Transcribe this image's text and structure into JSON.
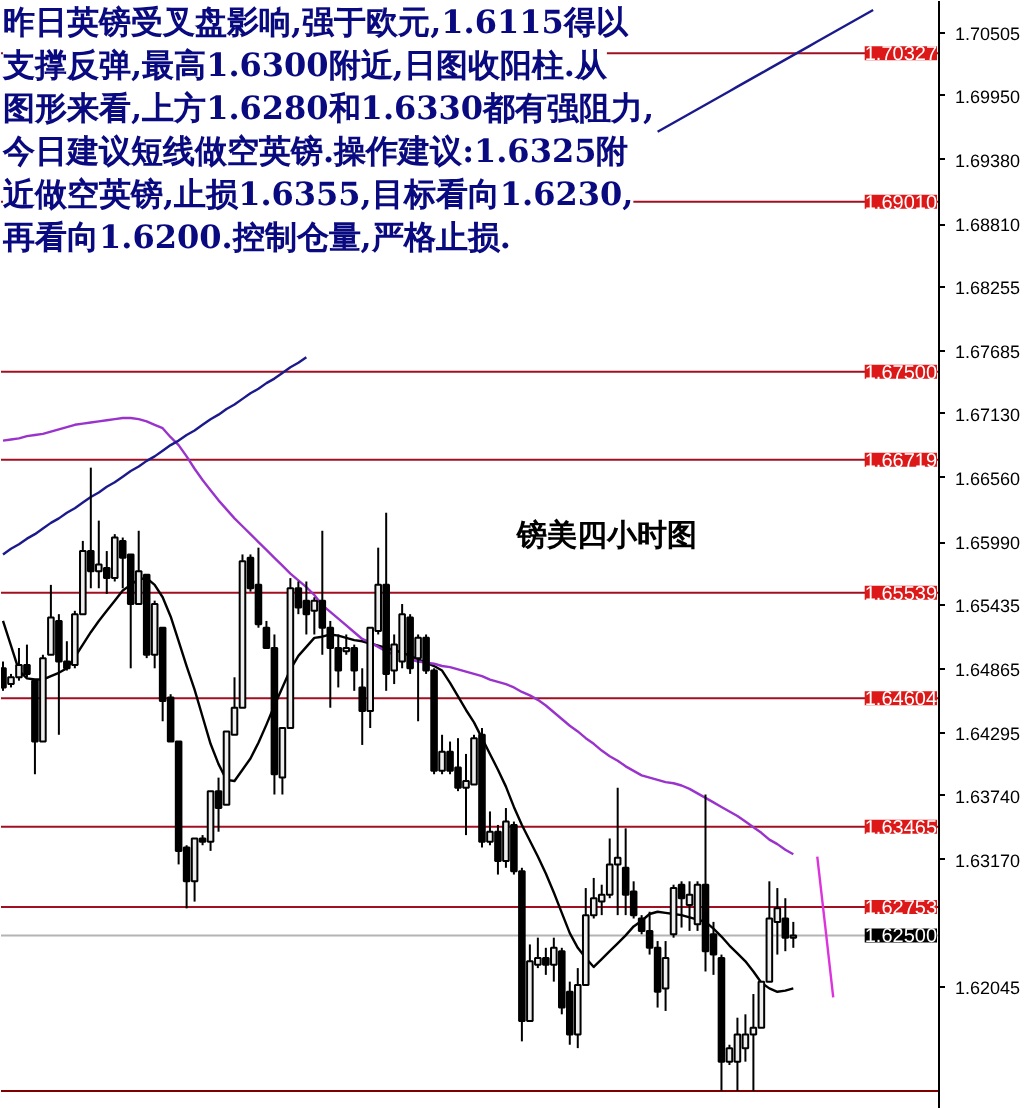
{
  "chart_data": {
    "type": "candlestick",
    "title": "镑美四小时图",
    "annotations": [
      "昨日英镑受叉盘影响,强于欧元,1.6115得以",
      "支撑反弹,最高1.6300附近,日图收阳柱.从",
      "图形来看,上方1.6280和1.6330都有强阻力,",
      "今日建议短线做空英镑.操作建议:1.6325附",
      "近做空英镑,止损1.6355,目标看向1.6230,",
      "再看向1.6200.控制仓量,严格止损."
    ],
    "categories": [
      null,
      null,
      null,
      null,
      null,
      null,
      null,
      null,
      null,
      null,
      null,
      null,
      null,
      null,
      null,
      null,
      null,
      null,
      null,
      null,
      null,
      null,
      null,
      null,
      null,
      null,
      null,
      null,
      null,
      null,
      null,
      null,
      null,
      null,
      null,
      null,
      null,
      null,
      null,
      null,
      null,
      null,
      null,
      null,
      null,
      null,
      null,
      null,
      null,
      null,
      null,
      null,
      null,
      null,
      null,
      null,
      null,
      null,
      null,
      null,
      null,
      null,
      null,
      null,
      null,
      null,
      null,
      null,
      null,
      null,
      null,
      null,
      null,
      null,
      null,
      null,
      null,
      null,
      null,
      null,
      null,
      null,
      null,
      null,
      null,
      null,
      null,
      null,
      null,
      null,
      null,
      null,
      null,
      null,
      null,
      null,
      null,
      null,
      null,
      null,
      null,
      null,
      null,
      null,
      null,
      null,
      null,
      null,
      null,
      null
    ],
    "ohlc": [
      [
        1.6487,
        1.6493,
        1.6467,
        1.647
      ],
      [
        1.6473,
        1.6482,
        1.647,
        1.6479
      ],
      [
        1.6479,
        1.6505,
        1.6476,
        1.649
      ],
      [
        1.649,
        1.6508,
        1.6479,
        1.6482
      ],
      [
        1.6476,
        1.6476,
        1.6393,
        1.6422
      ],
      [
        1.6422,
        1.6499,
        1.6422,
        1.6496
      ],
      [
        1.6499,
        1.6561,
        1.6499,
        1.6532
      ],
      [
        1.6529,
        1.6535,
        1.6428,
        1.6493
      ],
      [
        1.6493,
        1.6511,
        1.6485,
        1.6487
      ],
      [
        1.649,
        1.6538,
        1.6487,
        1.6535
      ],
      [
        1.6535,
        1.66,
        1.6535,
        1.6591
      ],
      [
        1.6591,
        1.6665,
        1.6558,
        1.6573
      ],
      [
        1.6573,
        1.6618,
        1.6558,
        1.6579
      ],
      [
        1.6576,
        1.6591,
        1.6553,
        1.6567
      ],
      [
        1.6567,
        1.6606,
        1.6564,
        1.6603
      ],
      [
        1.66,
        1.6603,
        1.6558,
        1.6585
      ],
      [
        1.6588,
        1.6588,
        1.6487,
        1.6544
      ],
      [
        1.6544,
        1.6609,
        1.6544,
        1.6573
      ],
      [
        1.657,
        1.657,
        1.6496,
        1.6499
      ],
      [
        1.6499,
        1.6547,
        1.6487,
        1.6544
      ],
      [
        1.6523,
        1.6523,
        1.644,
        1.6458
      ],
      [
        1.6461,
        1.6464,
        1.6422,
        1.6422
      ],
      [
        1.6422,
        1.6422,
        1.6313,
        1.6325
      ],
      [
        1.6328,
        1.633,
        1.6274,
        1.6298
      ],
      [
        1.6298,
        1.6336,
        1.628,
        1.6336
      ],
      [
        1.6336,
        1.6339,
        1.633,
        1.6333
      ],
      [
        1.6333,
        1.6378,
        1.6325,
        1.6378
      ],
      [
        1.6378,
        1.639,
        1.6342,
        1.6363
      ],
      [
        1.6366,
        1.6431,
        1.6366,
        1.6431
      ],
      [
        1.6428,
        1.6479,
        1.6428,
        1.6452
      ],
      [
        1.6452,
        1.6588,
        1.6452,
        1.6582
      ],
      [
        1.6585,
        1.6588,
        1.6555,
        1.6558
      ],
      [
        1.6561,
        1.6594,
        1.6523,
        1.6526
      ],
      [
        1.6523,
        1.6529,
        1.6505,
        1.6505
      ],
      [
        1.6505,
        1.6517,
        1.6375,
        1.6393
      ],
      [
        1.639,
        1.6434,
        1.6375,
        1.6434
      ],
      [
        1.6434,
        1.6567,
        1.6434,
        1.6558
      ],
      [
        1.6558,
        1.6564,
        1.6535,
        1.6541
      ],
      [
        1.6547,
        1.6564,
        1.6517,
        1.6535
      ],
      [
        1.6538,
        1.655,
        1.6517,
        1.6547
      ],
      [
        1.6547,
        1.6609,
        1.6499,
        1.6523
      ],
      [
        1.6523,
        1.6529,
        1.6452,
        1.6505
      ],
      [
        1.6505,
        1.6517,
        1.647,
        1.6485
      ],
      [
        1.6502,
        1.6517,
        1.6499,
        1.6505
      ],
      [
        1.6505,
        1.6508,
        1.6467,
        1.6485
      ],
      [
        1.647,
        1.6487,
        1.6419,
        1.6449
      ],
      [
        1.6449,
        1.6523,
        1.6434,
        1.6523
      ],
      [
        1.652,
        1.6594,
        1.6517,
        1.6561
      ],
      [
        1.6561,
        1.6625,
        1.6467,
        1.6482
      ],
      [
        1.6485,
        1.6517,
        1.6473,
        1.6508
      ],
      [
        1.6493,
        1.6544,
        1.6487,
        1.6535
      ],
      [
        1.6532,
        1.6535,
        1.6482,
        1.6487
      ],
      [
        1.6496,
        1.6517,
        1.644,
        1.6514
      ],
      [
        1.6514,
        1.6517,
        1.6482,
        1.6485
      ],
      [
        1.6485,
        1.6487,
        1.6393,
        1.6396
      ],
      [
        1.6396,
        1.6428,
        1.6393,
        1.6413
      ],
      [
        1.6413,
        1.6422,
        1.6393,
        1.6396
      ],
      [
        1.6399,
        1.6425,
        1.6378,
        1.6381
      ],
      [
        1.6381,
        1.6411,
        1.6339,
        1.6387
      ],
      [
        1.6384,
        1.6428,
        1.6384,
        1.6425
      ],
      [
        1.6428,
        1.6434,
        1.6328,
        1.6333
      ],
      [
        1.6333,
        1.636,
        1.633,
        1.6342
      ],
      [
        1.6342,
        1.6348,
        1.6304,
        1.6316
      ],
      [
        1.6316,
        1.6363,
        1.631,
        1.6351
      ],
      [
        1.6348,
        1.6351,
        1.6304,
        1.6307
      ],
      [
        1.6307,
        1.631,
        1.6156,
        1.6174
      ],
      [
        1.6174,
        1.6242,
        1.6174,
        1.6227
      ],
      [
        1.6224,
        1.6248,
        1.6221,
        1.623
      ],
      [
        1.623,
        1.6239,
        1.6215,
        1.6224
      ],
      [
        1.6224,
        1.6248,
        1.6209,
        1.6239
      ],
      [
        1.6236,
        1.6239,
        1.618,
        1.6186
      ],
      [
        1.62,
        1.6209,
        1.6153,
        1.6162
      ],
      [
        1.6162,
        1.6221,
        1.615,
        1.6206
      ],
      [
        1.6206,
        1.6292,
        1.6206,
        1.6268
      ],
      [
        1.6268,
        1.6301,
        1.6265,
        1.6283
      ],
      [
        1.628,
        1.6295,
        1.6268,
        1.6286
      ],
      [
        1.6286,
        1.6336,
        1.6283,
        1.6313
      ],
      [
        1.6313,
        1.6381,
        1.6268,
        1.6319
      ],
      [
        1.631,
        1.6345,
        1.6268,
        1.6286
      ],
      [
        1.6289,
        1.6298,
        1.6265,
        1.6268
      ],
      [
        1.6265,
        1.6268,
        1.6251,
        1.6254
      ],
      [
        1.6254,
        1.6271,
        1.6233,
        1.6239
      ],
      [
        1.6239,
        1.6245,
        1.6186,
        1.62
      ],
      [
        1.6203,
        1.6245,
        1.6183,
        1.623
      ],
      [
        1.6251,
        1.6295,
        1.6248,
        1.6292
      ],
      [
        1.6295,
        1.6298,
        1.6257,
        1.6283
      ],
      [
        1.6277,
        1.6298,
        1.6254,
        1.6286
      ],
      [
        1.626,
        1.6298,
        1.6254,
        1.6295
      ],
      [
        1.6295,
        1.6375,
        1.6218,
        1.6236
      ],
      [
        1.6251,
        1.6262,
        1.6215,
        1.6233
      ],
      [
        1.623,
        1.6233,
        1.6112,
        1.6138
      ],
      [
        1.6138,
        1.6153,
        1.6135,
        1.615
      ],
      [
        1.6138,
        1.6177,
        1.6112,
        1.6162
      ],
      [
        1.615,
        1.618,
        1.6138,
        1.6162
      ],
      [
        1.6162,
        1.6198,
        1.6112,
        1.6168
      ],
      [
        1.6168,
        1.6209,
        1.6168,
        1.6209
      ],
      [
        1.6209,
        1.6298,
        1.6209,
        1.6265
      ],
      [
        1.6262,
        1.6292,
        1.6233,
        1.6274
      ],
      [
        1.6265,
        1.6283,
        1.6236,
        1.6248
      ],
      [
        1.6248,
        1.6262,
        1.6239,
        1.625
      ],
      null,
      null,
      null,
      null,
      null,
      null,
      null,
      null,
      null,
      null
    ],
    "series": [
      {
        "type": "line",
        "color": "#000000",
        "values": [
          1.6529,
          1.6507,
          1.6485,
          1.6478,
          1.6477,
          1.6477,
          1.648,
          1.6483,
          1.6487,
          1.6497,
          1.6508,
          1.6519,
          1.6529,
          1.6538,
          1.6547,
          1.6556,
          1.6561,
          1.6566,
          1.6567,
          1.6561,
          1.655,
          1.6533,
          1.6511,
          1.6489,
          1.6468,
          1.6444,
          1.642,
          1.6402,
          1.6388,
          1.6387,
          1.6397,
          1.6407,
          1.6421,
          1.6437,
          1.6454,
          1.647,
          1.6486,
          1.6498,
          1.6506,
          1.6514,
          1.6515,
          1.6517,
          1.6516,
          1.6514,
          1.6512,
          1.6511,
          1.6509,
          1.6507,
          1.6505,
          1.6503,
          1.6501,
          1.6498,
          1.6495,
          1.6492,
          1.6489,
          1.6485,
          1.6474,
          1.6462,
          1.645,
          1.6439,
          1.6425,
          1.6411,
          1.6397,
          1.6382,
          1.6364,
          1.6348,
          1.6334,
          1.632,
          1.6305,
          1.6288,
          1.627,
          1.6252,
          1.6239,
          1.623,
          1.6222,
          1.6229,
          1.6236,
          1.6243,
          1.625,
          1.6258,
          1.6263,
          1.6269,
          1.6271,
          1.627,
          1.6269,
          1.6268,
          1.6266,
          1.6264,
          1.6262,
          1.6256,
          1.6249,
          1.6241,
          1.6234,
          1.6227,
          1.6218,
          1.6208,
          1.6203,
          1.62,
          1.6201,
          1.6203,
          null,
          null,
          null,
          null,
          null,
          null,
          null,
          null,
          null,
          null
        ]
      },
      {
        "type": "line",
        "color": "#9933cc",
        "values": [
          1.6689,
          1.669,
          1.6691,
          1.6693,
          1.6694,
          1.6695,
          1.6697,
          1.6699,
          1.6701,
          1.6703,
          1.6704,
          1.6705,
          1.6706,
          1.6707,
          1.6708,
          1.6709,
          1.6709,
          1.6708,
          1.6706,
          1.6703,
          1.67,
          1.6692,
          1.6685,
          1.6675,
          1.6664,
          1.6654,
          1.6645,
          1.6636,
          1.6628,
          1.662,
          1.6613,
          1.6606,
          1.6599,
          1.6592,
          1.6585,
          1.6578,
          1.6571,
          1.6565,
          1.6559,
          1.6552,
          1.6543,
          1.6537,
          1.6531,
          1.6525,
          1.6519,
          1.6513,
          1.651,
          1.6506,
          1.6502,
          1.6499,
          null,
          1.6495,
          1.6493,
          1.6492,
          1.6491,
          1.6489,
          1.6488,
          1.6486,
          1.6484,
          1.6482,
          1.648,
          1.6477,
          1.6475,
          1.6473,
          1.647,
          1.6466,
          1.6463,
          1.6459,
          1.6454,
          1.6448,
          1.6442,
          1.6436,
          1.6431,
          1.6425,
          1.642,
          1.6414,
          1.6409,
          1.6405,
          1.64,
          1.6396,
          1.6392,
          1.639,
          1.6388,
          1.6386,
          1.6385,
          1.6383,
          1.638,
          1.6376,
          1.6372,
          1.6368,
          1.6364,
          1.636,
          1.6356,
          1.6351,
          1.6346,
          1.6341,
          1.6335,
          1.6331,
          1.6326,
          1.6322,
          null,
          null,
          null,
          null,
          null,
          null,
          null,
          null,
          null,
          null
        ]
      },
      {
        "type": "line",
        "color": "#1a1a8c",
        "values": [
          1.6588,
          1.6593,
          1.6597,
          1.6602,
          1.6606,
          1.6611,
          1.6616,
          1.662,
          1.6625,
          1.6629,
          1.6634,
          1.6639,
          1.6643,
          1.6648,
          1.6652,
          1.6657,
          1.6662,
          1.6666,
          1.6671,
          1.6675,
          1.668,
          1.6685,
          1.6689,
          1.6694,
          1.6698,
          1.6703,
          1.6708,
          1.6712,
          1.6717,
          1.6721,
          1.6726,
          1.6731,
          1.6735,
          1.674,
          1.6744,
          1.6749,
          1.6754,
          1.6758,
          1.6763,
          null,
          null,
          null,
          null,
          null,
          null,
          null,
          null,
          null,
          null,
          null,
          null,
          null,
          null,
          null,
          null,
          null,
          null,
          null,
          null,
          null,
          null,
          null,
          null,
          null,
          null,
          null,
          null,
          null,
          null,
          null,
          null,
          null,
          null,
          null,
          null,
          null,
          null,
          null,
          null,
          null,
          null,
          null,
          null,
          null,
          null,
          null,
          null,
          null,
          null,
          null,
          null,
          null,
          null,
          null,
          null,
          null,
          null,
          null,
          null,
          null,
          null,
          null,
          null,
          null,
          null,
          null,
          null,
          null,
          null,
          null
        ]
      },
      {
        "type": "line",
        "color": "#1a1a8c",
        "values": [
          null,
          null,
          null,
          null,
          null,
          null,
          null,
          null,
          null,
          null,
          null,
          null,
          null,
          null,
          null,
          null,
          null,
          null,
          null,
          null,
          null,
          null,
          null,
          null,
          null,
          null,
          null,
          null,
          null,
          null,
          null,
          null,
          null,
          null,
          null,
          null,
          null,
          null,
          null,
          null,
          null,
          null,
          null,
          null,
          null,
          null,
          null,
          null,
          null,
          null,
          null,
          null,
          null,
          null,
          null,
          null,
          null,
          null,
          null,
          null,
          null,
          null,
          null,
          null,
          null,
          null,
          null,
          null,
          null,
          null,
          null,
          null,
          null,
          null,
          null,
          null,
          null,
          null,
          null,
          null,
          null,
          null,
          1.6963,
          1.6967,
          1.6971,
          1.6975,
          1.6979,
          1.6983,
          1.6987,
          1.6991,
          1.6995,
          1.6999,
          1.7003,
          1.7007,
          1.7011,
          1.7015,
          1.7019,
          1.7023,
          1.7027,
          1.7031,
          1.7035,
          1.7039,
          1.7043,
          1.7047,
          1.7051,
          1.7055,
          1.7059,
          1.7063,
          1.7067,
          1.7071
        ]
      },
      {
        "type": "line",
        "color": "#dd33dd",
        "values": [
          null,
          null,
          null,
          null,
          null,
          null,
          null,
          null,
          null,
          null,
          null,
          null,
          null,
          null,
          null,
          null,
          null,
          null,
          null,
          null,
          null,
          null,
          null,
          null,
          null,
          null,
          null,
          null,
          null,
          null,
          null,
          null,
          null,
          null,
          null,
          null,
          null,
          null,
          null,
          null,
          null,
          null,
          null,
          null,
          null,
          null,
          null,
          null,
          null,
          null,
          null,
          null,
          null,
          null,
          null,
          null,
          null,
          null,
          null,
          null,
          null,
          null,
          null,
          null,
          null,
          null,
          null,
          null,
          null,
          null,
          null,
          null,
          null,
          null,
          null,
          null,
          null,
          null,
          null,
          null,
          null,
          null,
          null,
          null,
          null,
          null,
          null,
          null,
          null,
          null,
          null,
          null,
          null,
          null,
          null,
          null,
          null,
          null,
          null,
          null,
          null,
          null,
          1.632,
          1.6258,
          1.6195,
          null,
          null,
          null,
          null,
          null
        ]
      }
    ],
    "ref_lines": [
      {
        "axis": "y",
        "value": 1.70327,
        "label": "1.70327",
        "color": "#a01020"
      },
      {
        "axis": "y",
        "value": 1.6901,
        "label": "1.69010",
        "color": "#a01020"
      },
      {
        "axis": "y",
        "value": 1.675,
        "label": "1.67500",
        "color": "#a01020"
      },
      {
        "axis": "y",
        "value": 1.66719,
        "label": "1.66719",
        "color": "#a01020"
      },
      {
        "axis": "y",
        "value": 1.65539,
        "label": "1.65539",
        "color": "#a01020"
      },
      {
        "axis": "y",
        "value": 1.64604,
        "label": "1.64604",
        "color": "#a01020"
      },
      {
        "axis": "y",
        "value": 1.63465,
        "label": "1.63465",
        "color": "#a01020"
      },
      {
        "axis": "y",
        "value": 1.62753,
        "label": "1.62753",
        "color": "#a01020"
      },
      {
        "axis": "y",
        "value": 1.625,
        "label": "1.62500",
        "color": "#b4b4b4"
      },
      {
        "axis": "y",
        "value": 1.6112,
        "color": "#800000"
      }
    ],
    "ylim": [
      1.6096,
      1.7079
    ],
    "yticks": [
      {
        "value": 1.70505,
        "label": "1.70505"
      },
      {
        "value": 1.6995,
        "label": "1.69950"
      },
      {
        "value": 1.6938,
        "label": "1.69380"
      },
      {
        "value": 1.6881,
        "label": "1.68810"
      },
      {
        "value": 1.68255,
        "label": "1.68255"
      },
      {
        "value": 1.67685,
        "label": "1.67685"
      },
      {
        "value": 1.6713,
        "label": "1.67130"
      },
      {
        "value": 1.6656,
        "label": "1.66560"
      },
      {
        "value": 1.6599,
        "label": "1.65990"
      },
      {
        "value": 1.65435,
        "label": "1.65435"
      },
      {
        "value": 1.64865,
        "label": "1.64865"
      },
      {
        "value": 1.64295,
        "label": "1.64295"
      },
      {
        "value": 1.6374,
        "label": "1.63740"
      },
      {
        "value": 1.6317,
        "label": "1.63170"
      },
      {
        "value": 1.62045,
        "label": "1.62045"
      }
    ],
    "tick_labels": "y"
  }
}
